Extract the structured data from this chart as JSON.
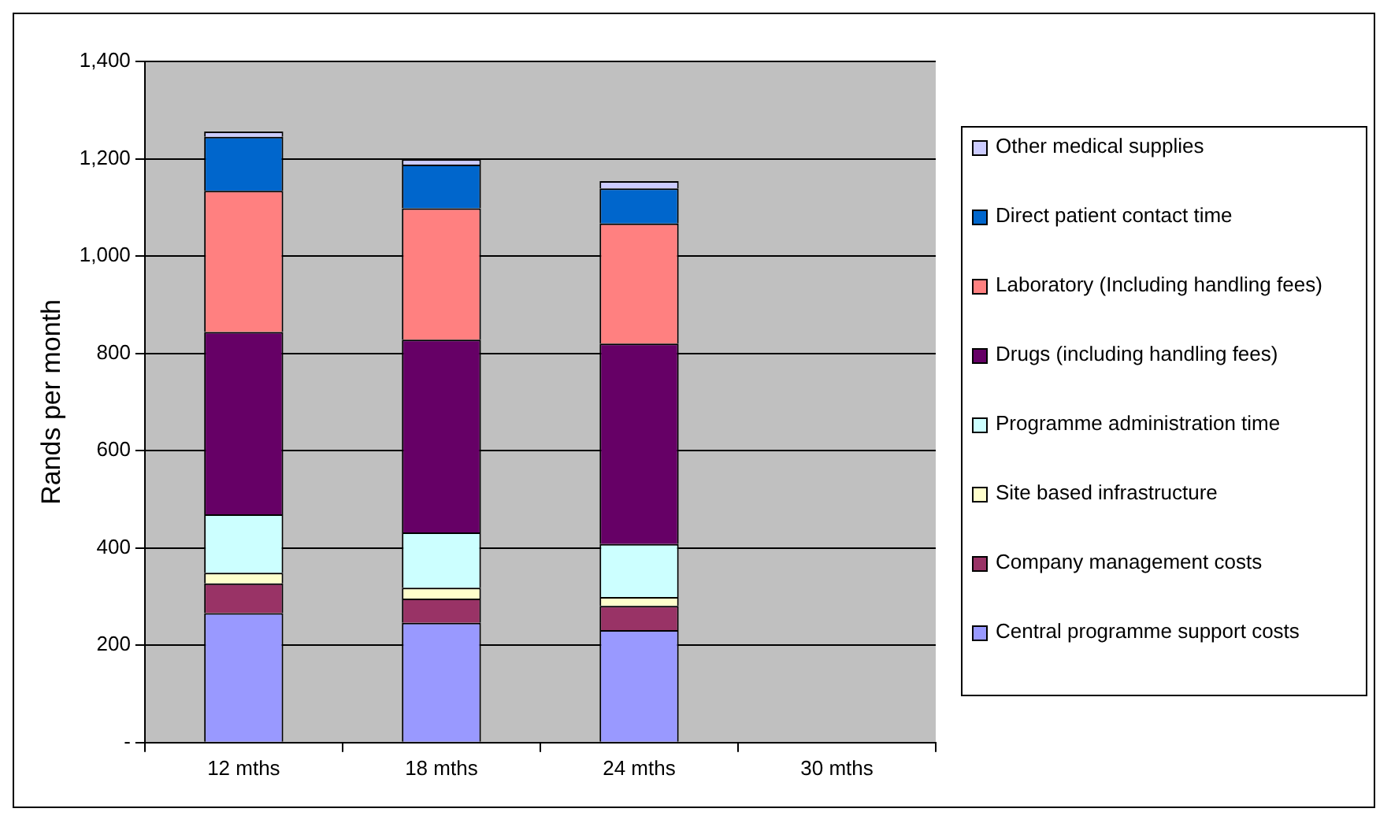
{
  "chart_data": {
    "type": "bar",
    "stacked": true,
    "ylabel": "Rands per month",
    "categories": [
      "12 mths",
      "18 mths",
      "24 mths",
      "30 mths"
    ],
    "series": [
      {
        "name": "Central programme support costs",
        "color": "#9999ff",
        "values": [
          266,
          246,
          231,
          null
        ]
      },
      {
        "name": "Company management costs",
        "color": "#993366",
        "values": [
          61,
          50,
          50,
          null
        ]
      },
      {
        "name": "Site based infrastructure",
        "color": "#ffffcc",
        "values": [
          22,
          22,
          18,
          null
        ]
      },
      {
        "name": "Programme administration time",
        "color": "#ccffff",
        "values": [
          120,
          114,
          109,
          null
        ]
      },
      {
        "name": "Drugs (including handling fees)",
        "color": "#660066",
        "values": [
          375,
          396,
          412,
          null
        ]
      },
      {
        "name": "Laboratory (Including handling fees)",
        "color": "#ff8080",
        "values": [
          290,
          270,
          247,
          null
        ]
      },
      {
        "name": "Direct patient contact time",
        "color": "#0066cc",
        "values": [
          111,
          90,
          72,
          null
        ]
      },
      {
        "name": "Other medical supplies",
        "color": "#ccccff",
        "values": [
          11,
          11,
          15,
          null
        ]
      }
    ],
    "ylim": [
      0,
      1400
    ],
    "yticks": [
      {
        "value": 0,
        "label": "-"
      },
      200,
      400,
      600,
      800,
      {
        "value": 1000,
        "label": "1,000"
      },
      {
        "value": 1200,
        "label": "1,200"
      },
      {
        "value": 1400,
        "label": "1,400"
      }
    ],
    "grid": "y",
    "legend": "right"
  }
}
